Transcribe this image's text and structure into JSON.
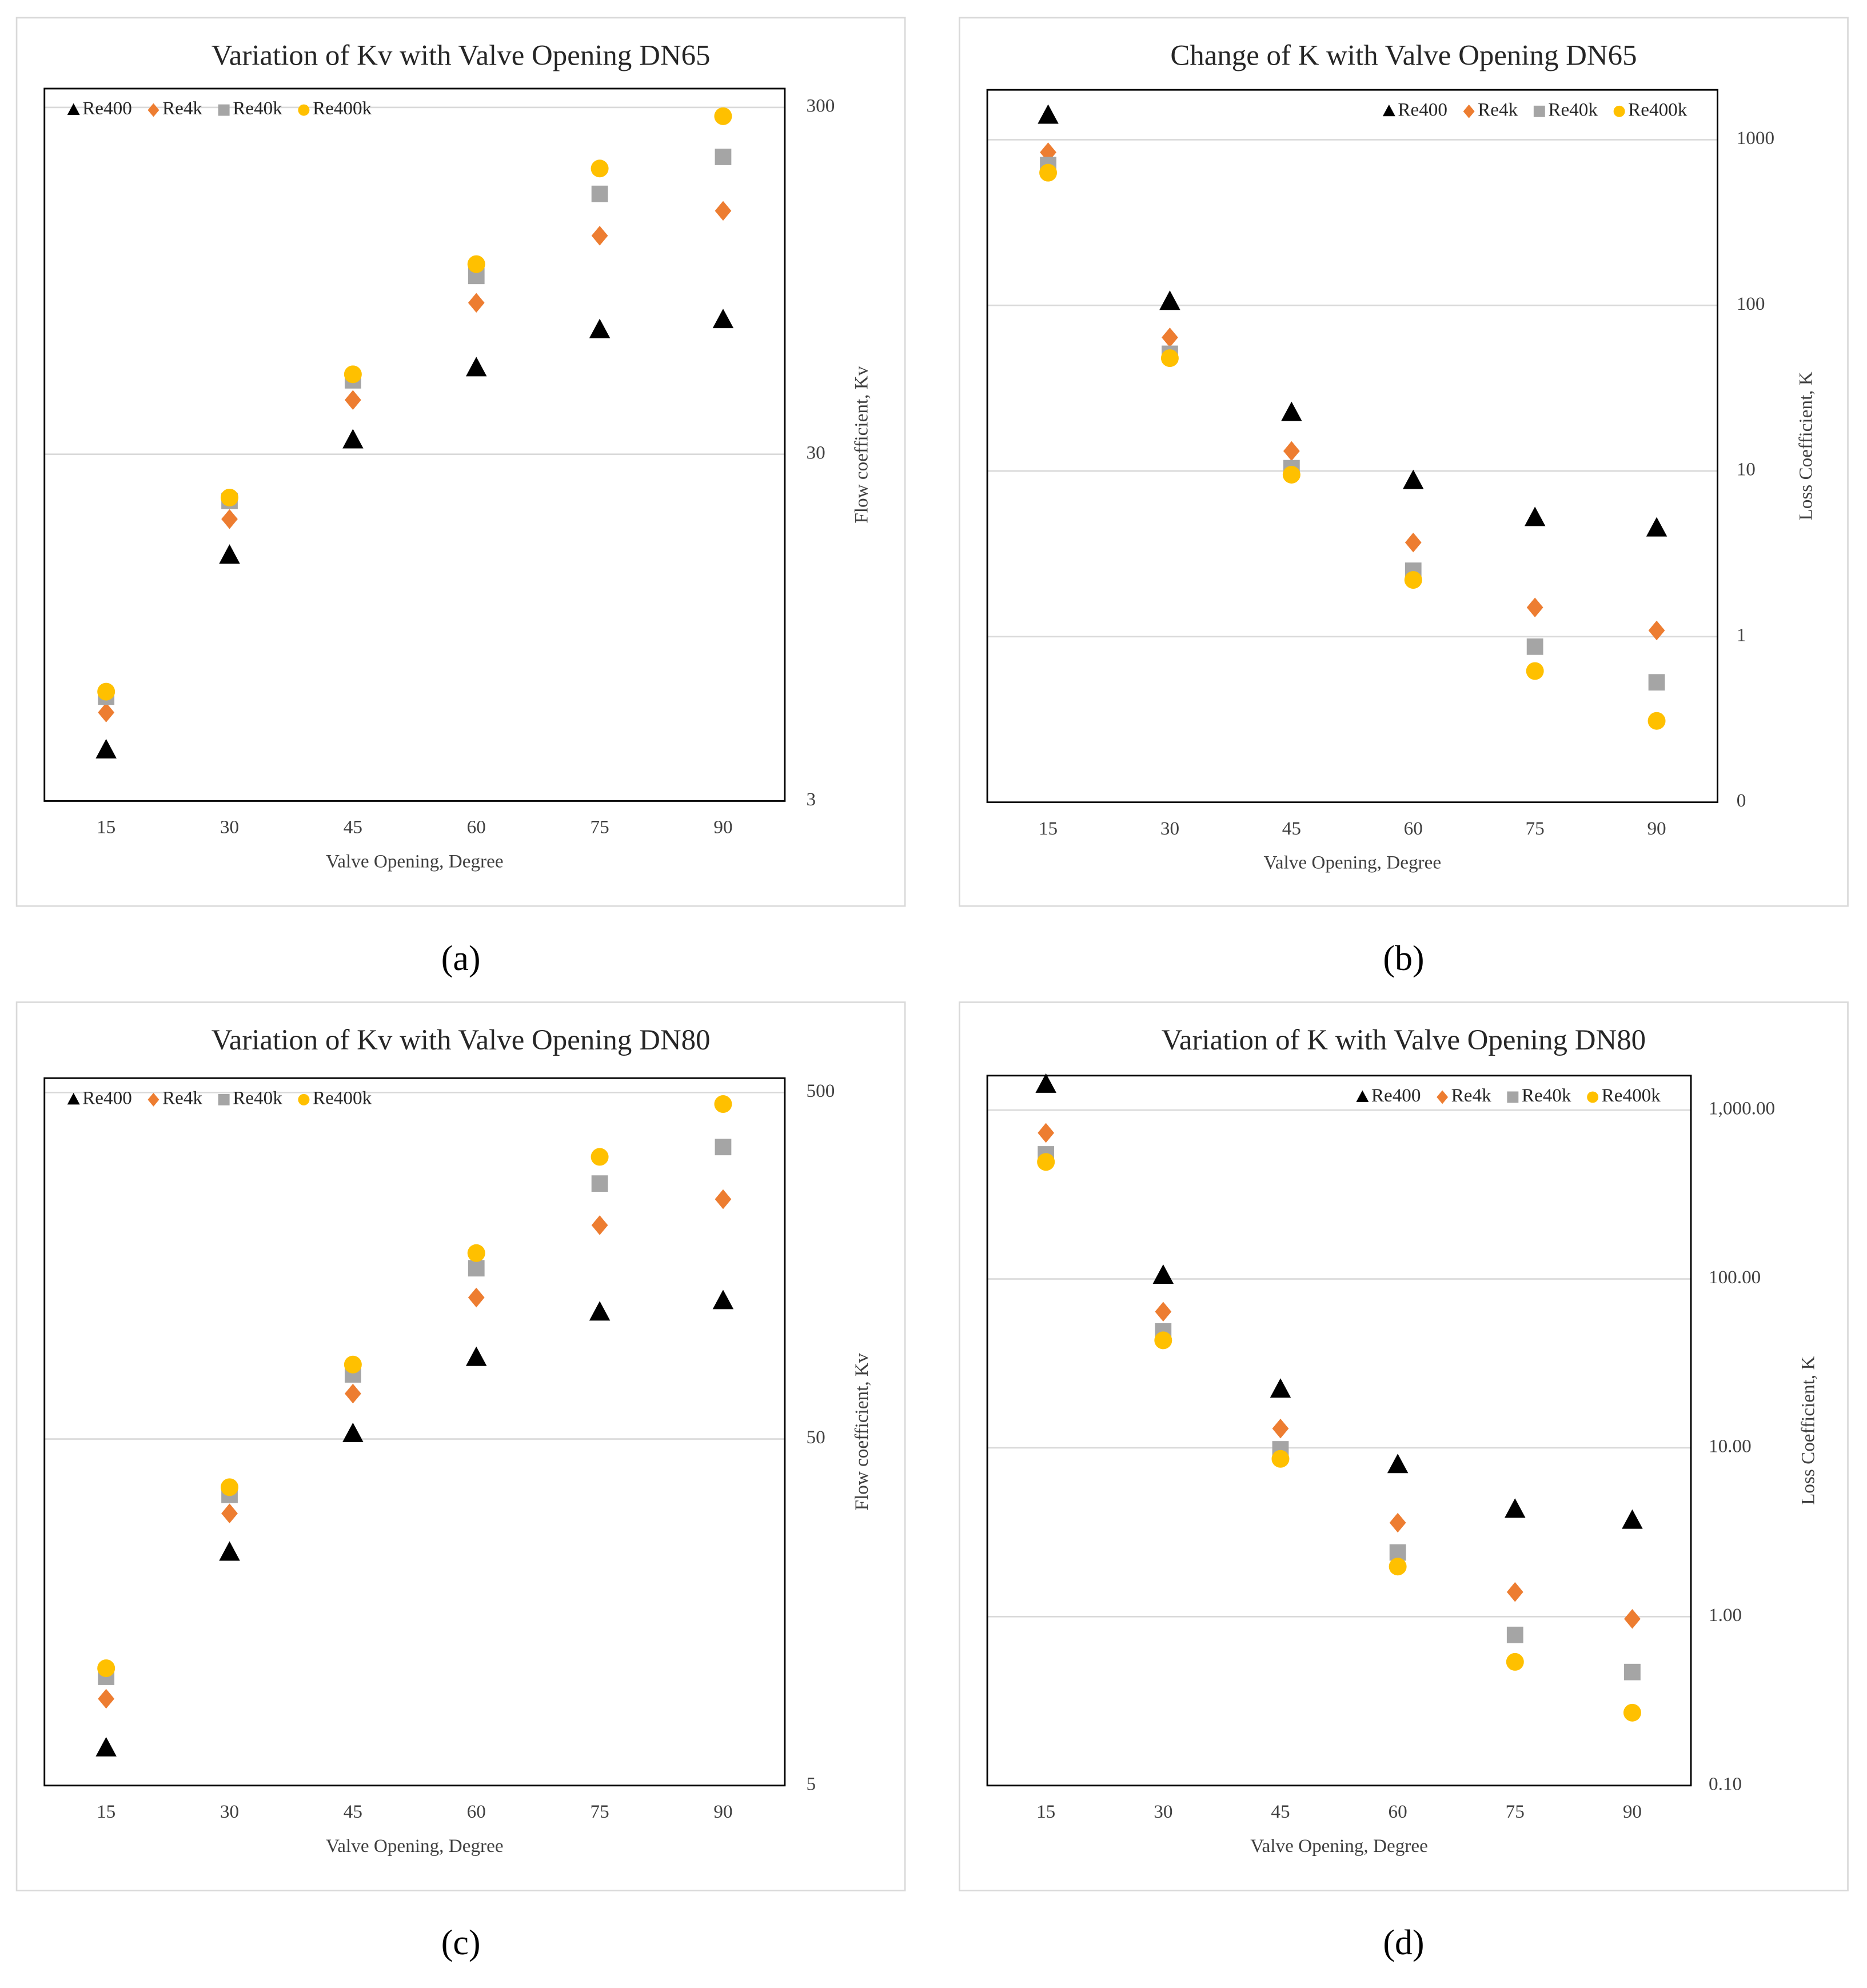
{
  "chart_data": [
    {
      "type": "scatter",
      "panel_label": "(a)",
      "title": "Variation of Kv with Valve Opening DN65",
      "x_label": "Valve Opening, Degree",
      "y_label": "Flow coefficient, Kv",
      "categories": [
        "15",
        "30",
        "45",
        "60",
        "75",
        "90"
      ],
      "log_y": true,
      "ylim": [
        3,
        340
      ],
      "yticks": [
        3,
        30,
        300
      ],
      "grid": true,
      "legend": "top-left",
      "series": [
        {
          "name": "Re400",
          "color": "#000000",
          "marker": "triangle",
          "values": [
            4.2,
            15.3,
            32.9,
            53.1,
            68.4,
            73.1
          ]
        },
        {
          "name": "Re4k",
          "color": "#ED7D31",
          "marker": "diamond",
          "values": [
            5.4,
            19.5,
            43,
            82,
            128,
            151
          ]
        },
        {
          "name": "Re40k",
          "color": "#A5A5A5",
          "marker": "square",
          "values": [
            6.0,
            22,
            49,
            98,
            169,
            216
          ]
        },
        {
          "name": "Re400k",
          "color": "#FFC000",
          "marker": "circle",
          "values": [
            6.2,
            22.5,
            51,
            106,
            200,
            283
          ]
        }
      ]
    },
    {
      "type": "scatter",
      "panel_label": "(b)",
      "title": "Change of K with Valve Opening DN65",
      "x_label": "Valve Opening, Degree",
      "y_label": "Loss Coefficient, K",
      "categories": [
        "15",
        "30",
        "45",
        "60",
        "75",
        "90"
      ],
      "log_y": true,
      "ylim": [
        0.1,
        2000
      ],
      "yticks": [
        {
          "value": 0.1,
          "label": "0"
        },
        1,
        10,
        100,
        1000
      ],
      "grid": true,
      "legend": "top-right",
      "series": [
        {
          "name": "Re400",
          "color": "#000000",
          "marker": "triangle",
          "values": [
            1396,
            105,
            22.4,
            8.7,
            5.2,
            4.5
          ]
        },
        {
          "name": "Re4k",
          "color": "#ED7D31",
          "marker": "diamond",
          "values": [
            839,
            64,
            13.2,
            3.7,
            1.5,
            1.09
          ]
        },
        {
          "name": "Re40k",
          "color": "#A5A5A5",
          "marker": "square",
          "values": [
            703,
            51,
            10.4,
            2.5,
            0.87,
            0.53
          ]
        },
        {
          "name": "Re400k",
          "color": "#FFC000",
          "marker": "circle",
          "values": [
            632,
            48,
            9.5,
            2.2,
            0.62,
            0.31
          ]
        }
      ]
    },
    {
      "type": "scatter",
      "panel_label": "(c)",
      "title": "Variation of Kv with Valve Opening DN80",
      "x_label": "Valve Opening, Degree",
      "y_label": "Flow coefficient, Kv",
      "categories": [
        "15",
        "30",
        "45",
        "60",
        "75",
        "90"
      ],
      "log_y": true,
      "ylim": [
        5,
        550
      ],
      "yticks": [
        5,
        50,
        500
      ],
      "grid": true,
      "legend": "top-left",
      "series": [
        {
          "name": "Re400",
          "color": "#000000",
          "marker": "triangle",
          "values": [
            6.4,
            23.5,
            51.7,
            85.7,
            115.9,
            125
          ]
        },
        {
          "name": "Re4k",
          "color": "#ED7D31",
          "marker": "diamond",
          "values": [
            8.9,
            30.5,
            67.6,
            128,
            207,
            246
          ]
        },
        {
          "name": "Re40k",
          "color": "#A5A5A5",
          "marker": "square",
          "values": [
            10.3,
            34.5,
            76.8,
            155.5,
            273,
            348
          ]
        },
        {
          "name": "Re400k",
          "color": "#FFC000",
          "marker": "circle",
          "values": [
            10.9,
            36.3,
            82,
            172,
            326,
            463
          ]
        }
      ]
    },
    {
      "type": "scatter",
      "panel_label": "(d)",
      "title": "Variation of K with Valve Opening DN80",
      "x_label": "Valve Opening, Degree",
      "y_label": "Loss Coefficient, K",
      "categories": [
        "15",
        "30",
        "45",
        "60",
        "75",
        "90"
      ],
      "log_y": true,
      "ylim": [
        0.1,
        1600
      ],
      "yticks": [
        {
          "value": 0.1,
          "label": "0.10"
        },
        {
          "value": 1,
          "label": "1.00"
        },
        {
          "value": 10,
          "label": "10.00"
        },
        {
          "value": 100,
          "label": "100.00"
        },
        {
          "value": 1000,
          "label": "1,000.00"
        }
      ],
      "grid": true,
      "legend": "top-right",
      "series": [
        {
          "name": "Re400",
          "color": "#000000",
          "marker": "triangle",
          "values": [
            1413,
            104.5,
            22.1,
            7.9,
            4.3,
            3.7
          ]
        },
        {
          "name": "Re4k",
          "color": "#ED7D31",
          "marker": "diamond",
          "values": [
            733,
            64,
            13,
            3.6,
            1.4,
            0.97
          ]
        },
        {
          "name": "Re40k",
          "color": "#A5A5A5",
          "marker": "square",
          "values": [
            547,
            48.9,
            9.8,
            2.4,
            0.78,
            0.47
          ]
        },
        {
          "name": "Re400k",
          "color": "#FFC000",
          "marker": "circle",
          "values": [
            493,
            43.3,
            8.6,
            1.98,
            0.54,
            0.27
          ]
        }
      ]
    }
  ]
}
